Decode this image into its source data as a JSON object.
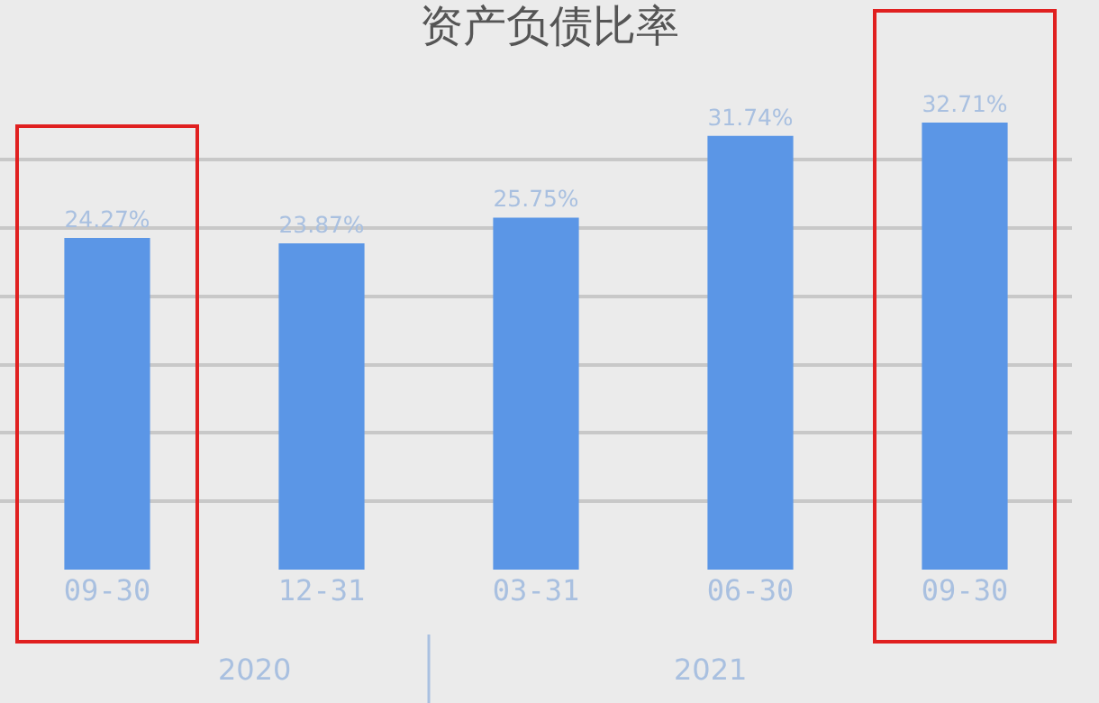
{
  "chart_data": {
    "type": "bar",
    "title": "资产负债比率",
    "categories": [
      "09-30",
      "12-31",
      "03-31",
      "06-30",
      "09-30"
    ],
    "values": [
      24.27,
      23.87,
      25.75,
      31.74,
      32.71
    ],
    "value_labels": [
      "24.27%",
      "23.87%",
      "25.75%",
      "31.74%",
      "32.71%"
    ],
    "color": "#5b96e6",
    "grid": "y",
    "tick_labels": "x",
    "legend": false,
    "annotations": [
      "2020",
      "2021"
    ]
  }
}
